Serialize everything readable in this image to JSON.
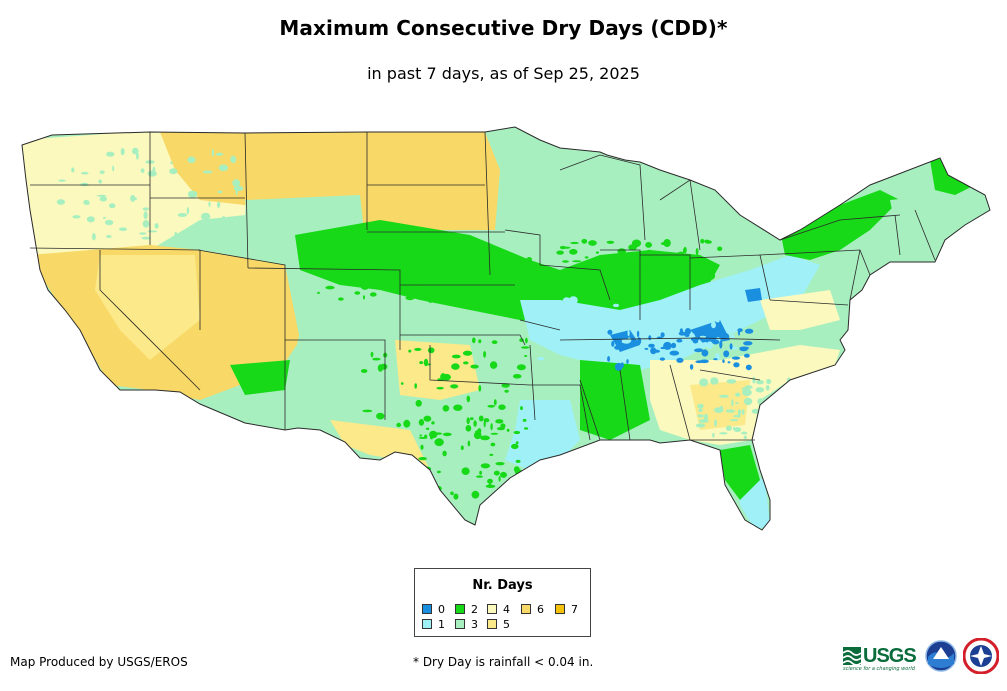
{
  "title": "Maximum Consecutive Dry Days (CDD)*",
  "subtitle": "in past 7 days, as of Sep 25, 2025",
  "legend": {
    "title": "Nr. Days",
    "items": [
      {
        "label": "0",
        "color": "#1a8fe0"
      },
      {
        "label": "1",
        "color": "#9ff0f7"
      },
      {
        "label": "2",
        "color": "#17d917"
      },
      {
        "label": "3",
        "color": "#a8efc0"
      },
      {
        "label": "4",
        "color": "#fbf9bd"
      },
      {
        "label": "5",
        "color": "#fbe98a"
      },
      {
        "label": "6",
        "color": "#f8d866"
      },
      {
        "label": "7",
        "color": "#f4c20b"
      }
    ]
  },
  "credit": "Map Produced by USGS/EROS",
  "footnote": "* Dry Day is rainfall < 0.04 in.",
  "logos": {
    "usgs": "USGS",
    "usgs_tagline": "science for a changing world",
    "noaa": "noaa",
    "nws": "nws-icon"
  }
}
